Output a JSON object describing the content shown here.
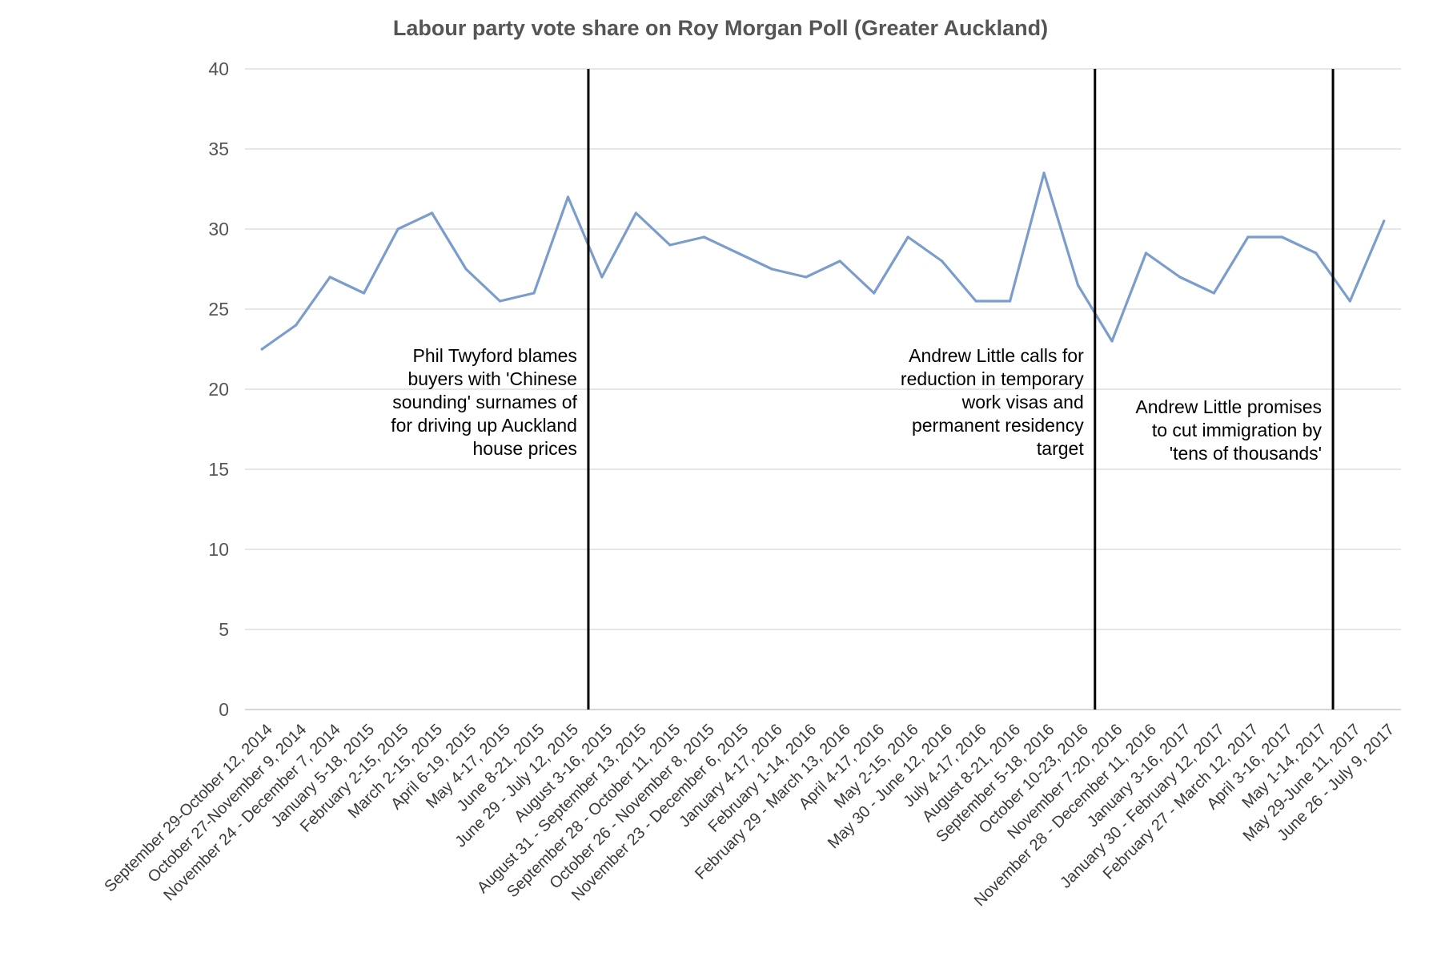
{
  "chart_data": {
    "type": "line",
    "title": "Labour party vote share on Roy Morgan Poll (Greater Auckland)",
    "xlabel": "",
    "ylabel": "",
    "ylim": [
      0,
      40
    ],
    "yticks": [
      0,
      5,
      10,
      15,
      20,
      25,
      30,
      35,
      40
    ],
    "grid": true,
    "legend": "none",
    "colors": {
      "series": "#7b9dcb",
      "grid": "#d6d6d6",
      "event_line": "#000000",
      "title": "#555555"
    },
    "categories": [
      "September 29-October 12, 2014",
      "October 27-November 9, 2014",
      "November 24 - December 7, 2014",
      "January 5-18, 2015",
      "February 2-15, 2015",
      "March 2-15, 2015",
      "April 6-19, 2015",
      "May 4-17, 2015",
      "June 8-21, 2015",
      "June 29 - July 12, 2015",
      "August 3-16, 2015",
      "August 31 - September 13, 2015",
      "September 28 - October 11, 2015",
      "October 26 - November 8, 2015",
      "November 23 - December 6, 2015",
      "January 4-17, 2016",
      "February 1-14, 2016",
      "February 29 - March 13, 2016",
      "April 4-17, 2016",
      "May 2-15, 2016",
      "May 30 - June 12, 2016",
      "July 4-17, 2016",
      "August 8-21, 2016",
      "September 5-18, 2016",
      "October 10-23, 2016",
      "November 7-20, 2016",
      "November 28 - December 11, 2016",
      "January 3-16, 2017",
      "January 30 - February 12, 2017",
      "February 27 - March 12, 2017",
      "April 3-16, 2017",
      "May 1-14, 2017",
      "May 29-June 11, 2017",
      "June 26 - July 9, 2017"
    ],
    "series": [
      {
        "values": [
          22.5,
          24,
          27,
          26,
          30,
          31,
          27.5,
          25.5,
          26,
          32,
          27,
          31,
          29,
          29.5,
          28.5,
          27.5,
          27,
          28,
          26,
          29.5,
          28,
          25.5,
          25.5,
          33.5,
          26.5,
          23,
          28.5,
          27,
          26,
          29.5,
          29.5,
          28.5,
          25.5,
          30.5
        ]
      }
    ],
    "events": [
      {
        "after_category_index": 9,
        "offset": 0.1,
        "text_lines": [
          "Phil Twyford blames",
          "buyers with 'Chinese",
          "sounding' surnames of",
          "for driving up Auckland",
          "house prices"
        ]
      },
      {
        "after_category_index": 24,
        "offset": 0.0,
        "text_lines": [
          "Andrew Little calls for",
          "reduction in temporary",
          "work visas and",
          "permanent residency",
          "target"
        ]
      },
      {
        "after_category_index": 31,
        "offset": 0.0,
        "text_lines": [
          "Andrew Little promises",
          "to cut immigration by",
          "'tens of thousands'"
        ]
      }
    ]
  }
}
